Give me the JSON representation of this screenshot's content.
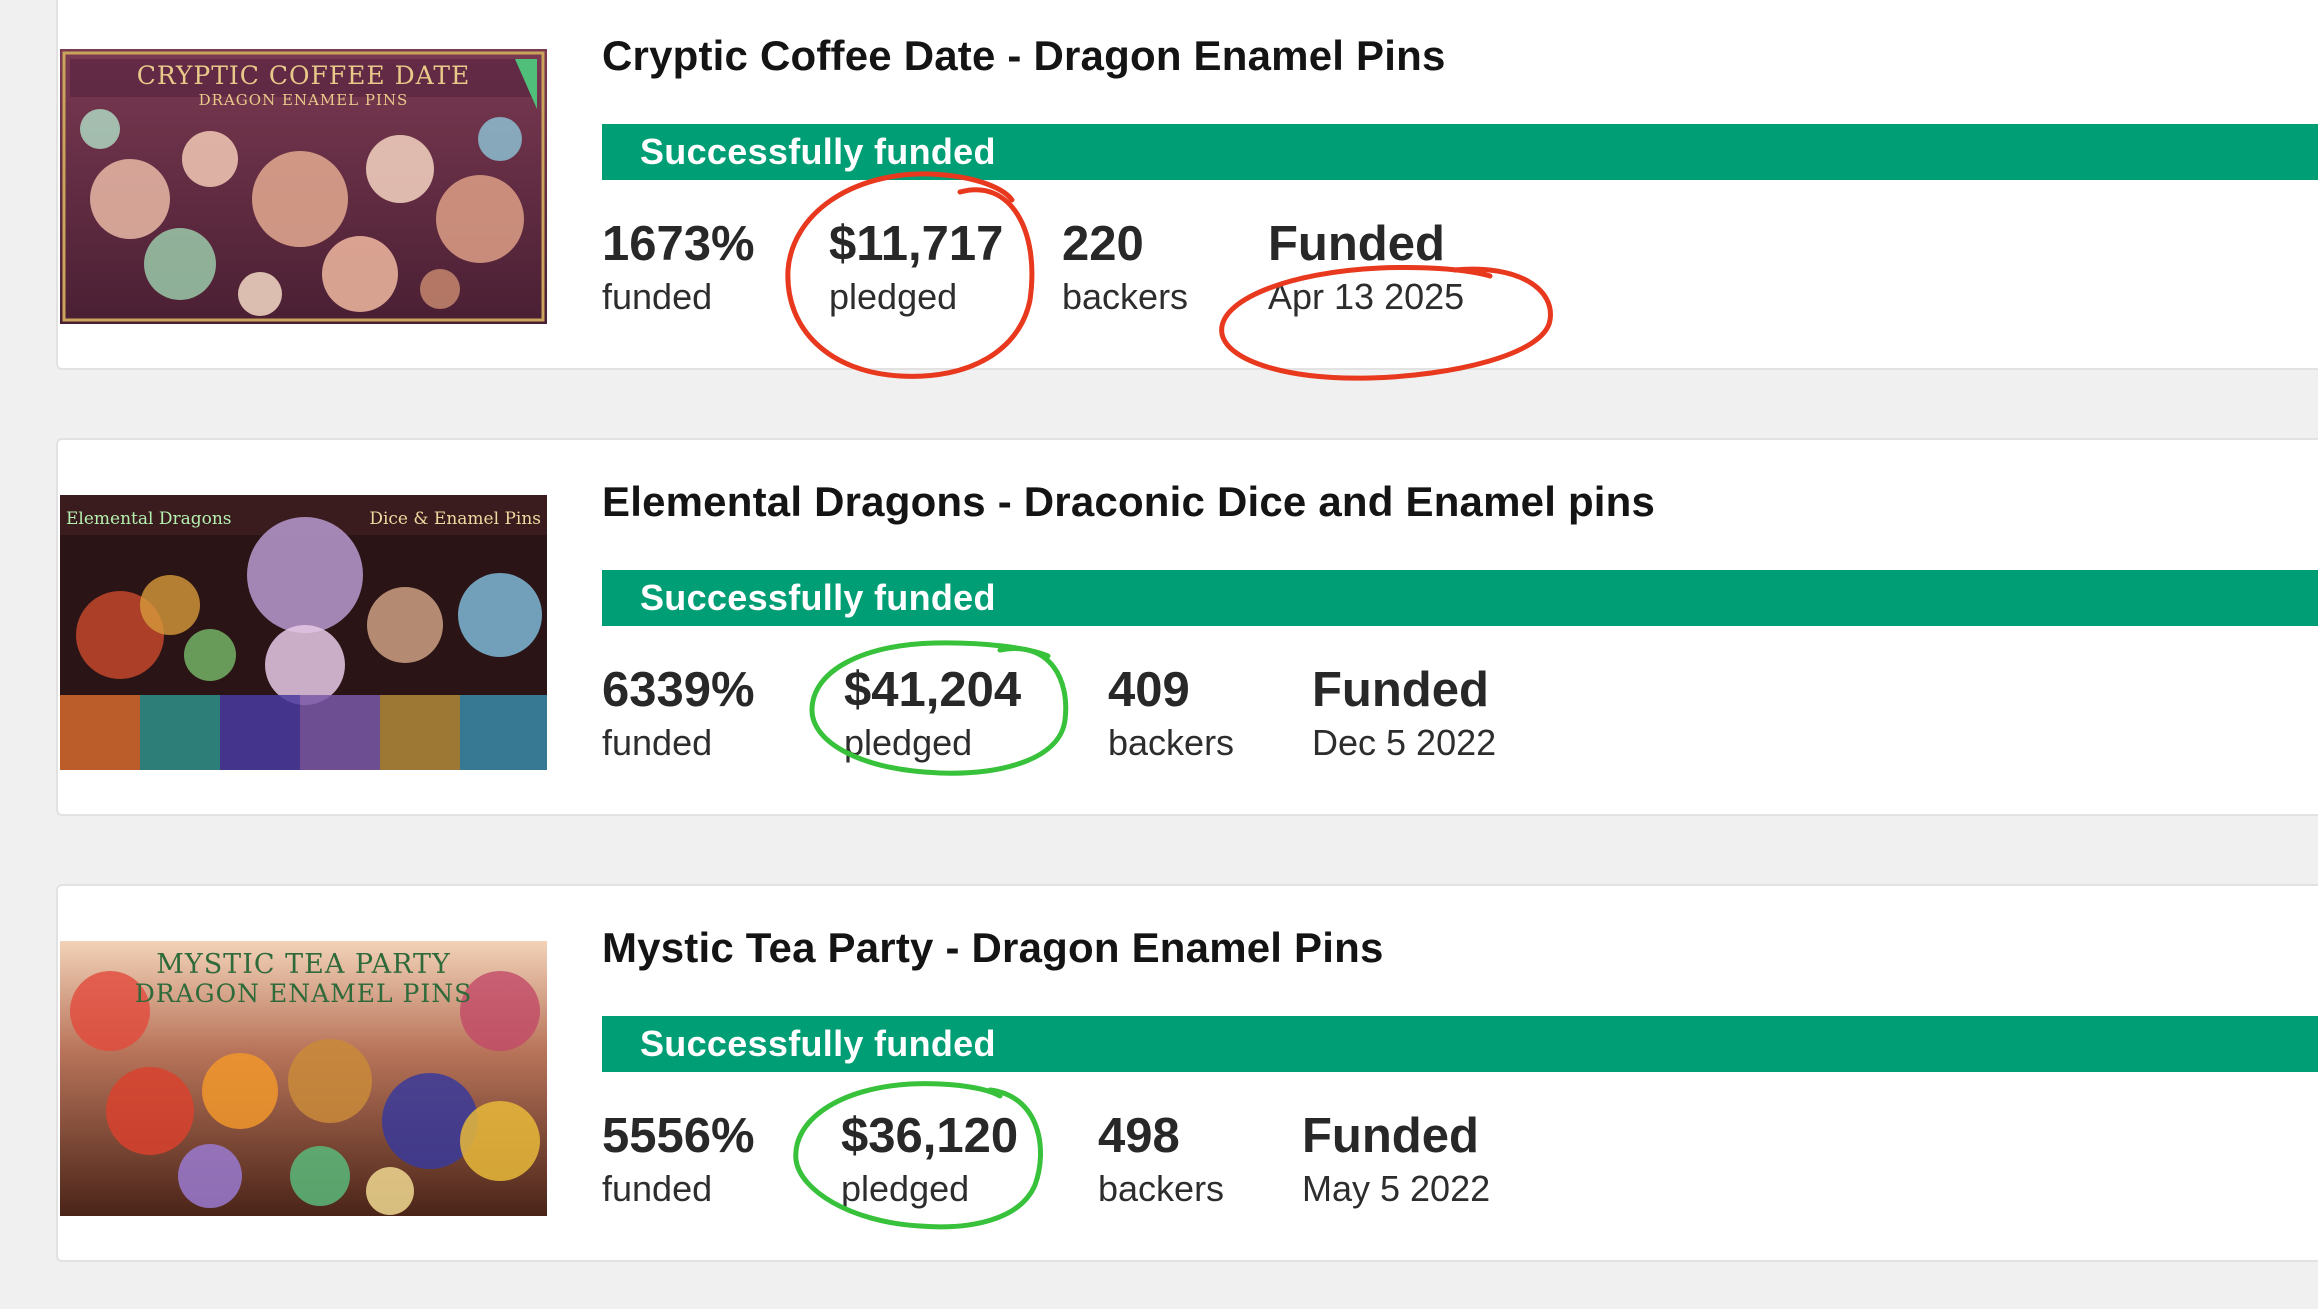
{
  "colors": {
    "status_green": "#009e74",
    "annotation_red": "#e8381e",
    "annotation_green": "#38c13a"
  },
  "projects": [
    {
      "title": "Cryptic Coffee Date - Dragon Enamel Pins",
      "thumbnail_text": [
        "CRYPTIC COFFEE DATE",
        "DRAGON ENAMEL PINS"
      ],
      "status": "Successfully funded",
      "percent": "1673%",
      "percent_label": "funded",
      "pledged": "$11,717",
      "pledged_label": "pledged",
      "backers": "220",
      "backers_label": "backers",
      "funded_heading": "Funded",
      "funded_date": "Apr 13 2025"
    },
    {
      "title": "Elemental Dragons - Draconic Dice and Enamel pins",
      "thumbnail_text": [
        "Elemental Dragons",
        "Dice & Enamel Pins"
      ],
      "status": "Successfully funded",
      "percent": "6339%",
      "percent_label": "funded",
      "pledged": "$41,204",
      "pledged_label": "pledged",
      "backers": "409",
      "backers_label": "backers",
      "funded_heading": "Funded",
      "funded_date": "Dec 5 2022"
    },
    {
      "title": "Mystic Tea Party - Dragon Enamel Pins",
      "thumbnail_text": [
        "MYSTIC TEA PARTY",
        "DRAGON ENAMEL PINS"
      ],
      "status": "Successfully funded",
      "percent": "5556%",
      "percent_label": "funded",
      "pledged": "$36,120",
      "pledged_label": "pledged",
      "backers": "498",
      "backers_label": "backers",
      "funded_heading": "Funded",
      "funded_date": "May 5 2022"
    }
  ]
}
